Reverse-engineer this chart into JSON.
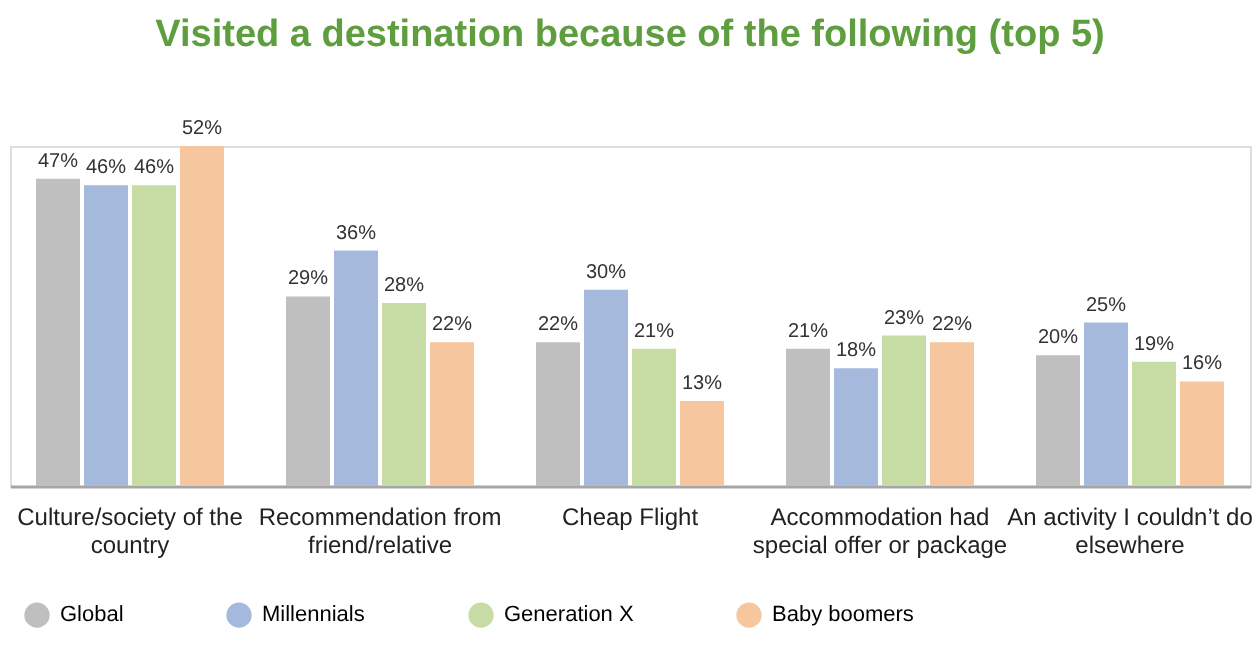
{
  "chart_data": {
    "type": "bar",
    "title": "Visited a destination because of the following (top 5)",
    "categories": [
      "Culture/society of the country",
      "Recommendation from friend/relative",
      "Cheap Flight",
      "Accommodation had special offer or package",
      "An activity I couldn’t do elsewhere"
    ],
    "series": [
      {
        "name": "Global",
        "color": "#bfbfbf",
        "values": [
          47,
          29,
          22,
          21,
          20
        ],
        "value_labels": [
          "47%",
          "29%",
          "22%",
          "21%",
          "20%"
        ]
      },
      {
        "name": "Millennials",
        "color": "#a4b9dc",
        "values": [
          46,
          36,
          30,
          18,
          25
        ],
        "value_labels": [
          "46%",
          "36%",
          "30%",
          "18%",
          "25%"
        ]
      },
      {
        "name": "Generation X",
        "color": "#c6dca4",
        "values": [
          46,
          28,
          21,
          23,
          19
        ],
        "value_labels": [
          "46%",
          "28%",
          "21%",
          "23%",
          "19%"
        ]
      },
      {
        "name": "Baby boomers",
        "color": "#f6c79e",
        "values": [
          52,
          22,
          13,
          22,
          16
        ],
        "value_labels": [
          "52%",
          "22%",
          "13%",
          "22%",
          "16%"
        ]
      }
    ],
    "legend": "bottom",
    "grid": false,
    "tick_labels": "x"
  }
}
